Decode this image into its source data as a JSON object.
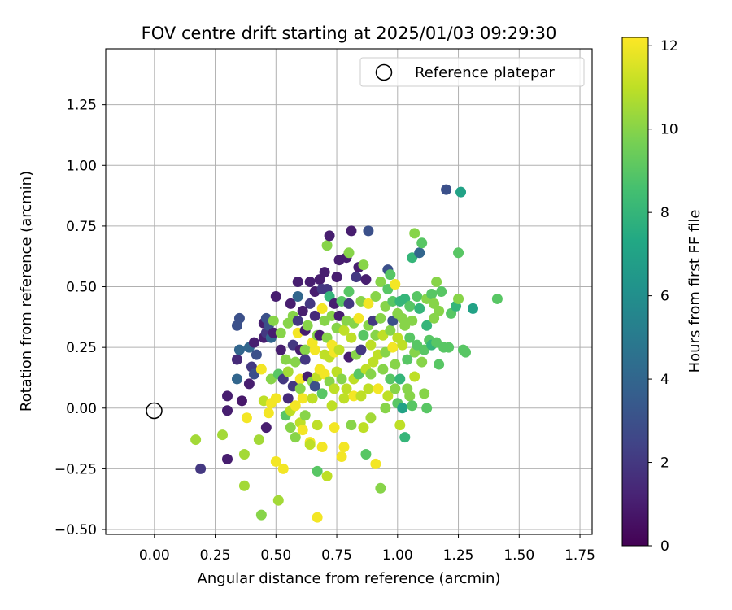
{
  "chart_data": {
    "type": "scatter",
    "title": "FOV centre drift starting at 2025/01/03 09:29:30",
    "xlabel": "Angular distance from reference (arcmin)",
    "ylabel": "Rotation from reference (arcmin)",
    "xlim": [
      -0.2,
      1.8
    ],
    "ylim": [
      -0.52,
      1.48
    ],
    "xticks": [
      "0.00",
      "0.25",
      "0.50",
      "0.75",
      "1.00",
      "1.25",
      "1.50",
      "1.75"
    ],
    "yticks": [
      "−0.50",
      "−0.25",
      "0.00",
      "0.25",
      "0.50",
      "0.75",
      "1.00",
      "1.25"
    ],
    "grid": true,
    "legend": {
      "location": "top-right",
      "entries": [
        {
          "label": "Reference platepar",
          "marker": "open-circle"
        }
      ]
    },
    "reference_point": {
      "x": 0.0,
      "y": 0.0
    },
    "colorbar": {
      "label": "Hours from first FF file",
      "colormap": "viridis",
      "range": [
        0,
        12.2
      ],
      "ticks": [
        "0",
        "2",
        "4",
        "6",
        "8",
        "10",
        "12"
      ]
    },
    "series": [
      {
        "color_by": "hours",
        "points": [
          [
            0.17,
            -0.13,
            10.5
          ],
          [
            0.19,
            -0.25,
            2
          ],
          [
            0.28,
            -0.11,
            10.5
          ],
          [
            0.3,
            -0.21,
            1
          ],
          [
            0.3,
            -0.01,
            1
          ],
          [
            0.3,
            0.05,
            1
          ],
          [
            0.34,
            0.12,
            4
          ],
          [
            0.34,
            0.2,
            1.5
          ],
          [
            0.34,
            0.34,
            3
          ],
          [
            0.35,
            0.37,
            3
          ],
          [
            0.35,
            0.24,
            4
          ],
          [
            0.36,
            0.03,
            0.8
          ],
          [
            0.37,
            -0.19,
            10.5
          ],
          [
            0.37,
            -0.32,
            10.5
          ],
          [
            0.38,
            -0.04,
            12
          ],
          [
            0.39,
            0.1,
            1
          ],
          [
            0.39,
            0.25,
            4
          ],
          [
            0.4,
            0.17,
            2
          ],
          [
            0.41,
            0.14,
            3
          ],
          [
            0.41,
            0.27,
            1
          ],
          [
            0.42,
            0.22,
            3
          ],
          [
            0.43,
            -0.13,
            10.5
          ],
          [
            0.44,
            -0.44,
            10
          ],
          [
            0.44,
            0.16,
            12
          ],
          [
            0.45,
            0.29,
            1
          ],
          [
            0.45,
            0.35,
            1
          ],
          [
            0.45,
            0.03,
            11
          ],
          [
            0.46,
            -0.08,
            1
          ],
          [
            0.46,
            0.31,
            2
          ],
          [
            0.46,
            0.37,
            3
          ],
          [
            0.47,
            0.34,
            3
          ],
          [
            0.47,
            -0.02,
            12
          ],
          [
            0.48,
            0.02,
            12
          ],
          [
            0.48,
            0.29,
            4
          ],
          [
            0.48,
            0.12,
            10
          ],
          [
            0.49,
            0.36,
            10
          ],
          [
            0.49,
            0.31,
            1
          ],
          [
            0.5,
            -0.22,
            12
          ],
          [
            0.5,
            0.46,
            1
          ],
          [
            0.5,
            0.04,
            12
          ],
          [
            0.51,
            0.14,
            9
          ],
          [
            0.51,
            -0.38,
            10.5
          ],
          [
            0.52,
            0.31,
            10
          ],
          [
            0.52,
            0.24,
            1
          ],
          [
            0.53,
            0.12,
            2
          ],
          [
            0.53,
            -0.25,
            12
          ],
          [
            0.54,
            -0.03,
            9
          ],
          [
            0.54,
            0.2,
            10
          ],
          [
            0.55,
            0.35,
            10
          ],
          [
            0.55,
            0.04,
            1.5
          ],
          [
            0.55,
            0.15,
            10.5
          ],
          [
            0.56,
            0.43,
            1
          ],
          [
            0.56,
            -0.01,
            11
          ],
          [
            0.56,
            -0.08,
            10
          ],
          [
            0.57,
            0.26,
            2
          ],
          [
            0.57,
            0.38,
            10
          ],
          [
            0.57,
            0.09,
            2
          ],
          [
            0.58,
            0.01,
            12
          ],
          [
            0.58,
            -0.12,
            10
          ],
          [
            0.58,
            0.19,
            10
          ],
          [
            0.59,
            0.31,
            12
          ],
          [
            0.59,
            0.36,
            2
          ],
          [
            0.59,
            0.52,
            1
          ],
          [
            0.59,
            0.46,
            4
          ],
          [
            0.6,
            -0.06,
            11
          ],
          [
            0.6,
            0.12,
            12
          ],
          [
            0.6,
            0.24,
            1
          ],
          [
            0.6,
            0.08,
            10
          ],
          [
            0.61,
            0.4,
            1
          ],
          [
            0.61,
            0.04,
            12
          ],
          [
            0.61,
            -0.09,
            12
          ],
          [
            0.62,
            0.24,
            10
          ],
          [
            0.62,
            0.32,
            1
          ],
          [
            0.62,
            -0.03,
            10
          ],
          [
            0.62,
            0.2,
            2
          ],
          [
            0.63,
            0.13,
            1
          ],
          [
            0.63,
            0.34,
            10
          ],
          [
            0.64,
            0.52,
            1
          ],
          [
            0.64,
            0.43,
            2
          ],
          [
            0.64,
            -0.14,
            12
          ],
          [
            0.64,
            -0.15,
            11
          ],
          [
            0.65,
            0.27,
            12
          ],
          [
            0.65,
            0.04,
            11
          ],
          [
            0.65,
            0.11,
            10
          ],
          [
            0.66,
            0.48,
            1
          ],
          [
            0.66,
            0.38,
            1.5
          ],
          [
            0.66,
            0.24,
            12
          ],
          [
            0.66,
            0.09,
            3
          ],
          [
            0.67,
            -0.45,
            12
          ],
          [
            0.67,
            -0.26,
            9
          ],
          [
            0.67,
            0.3,
            10
          ],
          [
            0.67,
            0.13,
            11
          ],
          [
            0.67,
            -0.07,
            11
          ],
          [
            0.68,
            0.53,
            1
          ],
          [
            0.68,
            0.3,
            1
          ],
          [
            0.68,
            0.16,
            12
          ],
          [
            0.69,
            0.41,
            12
          ],
          [
            0.69,
            0.49,
            2
          ],
          [
            0.69,
            0.06,
            9
          ],
          [
            0.69,
            -0.16,
            12
          ],
          [
            0.7,
            0.22,
            11
          ],
          [
            0.7,
            0.14,
            12
          ],
          [
            0.7,
            0.36,
            10
          ],
          [
            0.7,
            0.56,
            1
          ],
          [
            0.71,
            0.67,
            10
          ],
          [
            0.71,
            0.49,
            2
          ],
          [
            0.71,
            0.29,
            10
          ],
          [
            0.71,
            -0.28,
            11
          ],
          [
            0.72,
            0.71,
            1
          ],
          [
            0.72,
            0.46,
            8
          ],
          [
            0.72,
            0.11,
            10
          ],
          [
            0.72,
            0.21,
            11
          ],
          [
            0.73,
            0.26,
            12
          ],
          [
            0.73,
            0.38,
            10
          ],
          [
            0.73,
            0.01,
            11
          ],
          [
            0.74,
            0.43,
            1
          ],
          [
            0.74,
            0.23,
            12
          ],
          [
            0.74,
            -0.08,
            12
          ],
          [
            0.74,
            0.08,
            11
          ],
          [
            0.75,
            0.54,
            1
          ],
          [
            0.75,
            0.33,
            10
          ],
          [
            0.75,
            0.15,
            11
          ],
          [
            0.76,
            0.24,
            11
          ],
          [
            0.76,
            0.38,
            1
          ],
          [
            0.76,
            0.61,
            1
          ],
          [
            0.77,
            0.44,
            9
          ],
          [
            0.77,
            -0.2,
            12
          ],
          [
            0.77,
            0.12,
            10
          ],
          [
            0.78,
            0.32,
            11
          ],
          [
            0.78,
            0.04,
            11
          ],
          [
            0.78,
            -0.16,
            12
          ],
          [
            0.79,
            0.08,
            11
          ],
          [
            0.79,
            0.36,
            10
          ],
          [
            0.79,
            0.62,
            1
          ],
          [
            0.8,
            0.64,
            10
          ],
          [
            0.8,
            0.48,
            9
          ],
          [
            0.8,
            0.21,
            1
          ],
          [
            0.8,
            0.43,
            2
          ],
          [
            0.81,
            0.73,
            1
          ],
          [
            0.81,
            -0.07,
            10
          ],
          [
            0.81,
            0.29,
            11
          ],
          [
            0.82,
            0.35,
            10
          ],
          [
            0.82,
            0.12,
            11
          ],
          [
            0.82,
            0.05,
            12
          ],
          [
            0.83,
            0.54,
            2
          ],
          [
            0.83,
            0.22,
            10
          ],
          [
            0.84,
            0.58,
            1
          ],
          [
            0.84,
            0.37,
            12
          ],
          [
            0.84,
            0.14,
            9
          ],
          [
            0.85,
            0.05,
            11
          ],
          [
            0.85,
            0.44,
            10
          ],
          [
            0.85,
            0.24,
            2
          ],
          [
            0.86,
            -0.08,
            11
          ],
          [
            0.86,
            0.59,
            10
          ],
          [
            0.86,
            0.3,
            9
          ],
          [
            0.87,
            0.16,
            11
          ],
          [
            0.87,
            -0.19,
            9
          ],
          [
            0.87,
            0.53,
            1
          ],
          [
            0.88,
            0.43,
            12
          ],
          [
            0.88,
            0.73,
            3
          ],
          [
            0.88,
            0.34,
            10
          ],
          [
            0.88,
            0.08,
            11
          ],
          [
            0.89,
            -0.04,
            10.5
          ],
          [
            0.89,
            0.26,
            11
          ],
          [
            0.89,
            0.14,
            10
          ],
          [
            0.9,
            0.36,
            2
          ],
          [
            0.9,
            0.19,
            11
          ],
          [
            0.91,
            -0.23,
            12
          ],
          [
            0.91,
            0.46,
            10
          ],
          [
            0.91,
            0.3,
            10
          ],
          [
            0.92,
            0.08,
            12
          ],
          [
            0.92,
            0.22,
            11
          ],
          [
            0.93,
            -0.33,
            10
          ],
          [
            0.93,
            0.52,
            10
          ],
          [
            0.93,
            0.37,
            10
          ],
          [
            0.94,
            0.16,
            10
          ],
          [
            0.94,
            0.3,
            11
          ],
          [
            0.95,
            0.42,
            10
          ],
          [
            0.95,
            0.0,
            10
          ],
          [
            0.95,
            0.23,
            10
          ],
          [
            0.96,
            0.57,
            3
          ],
          [
            0.96,
            0.49,
            9
          ],
          [
            0.96,
            0.05,
            11
          ],
          [
            0.97,
            0.32,
            10
          ],
          [
            0.97,
            0.55,
            9
          ],
          [
            0.97,
            0.12,
            9
          ],
          [
            0.98,
            0.44,
            9
          ],
          [
            0.98,
            0.25,
            12
          ],
          [
            0.98,
            0.36,
            3
          ],
          [
            0.99,
            0.51,
            12
          ],
          [
            0.99,
            0.08,
            10
          ],
          [
            0.99,
            0.18,
            10
          ],
          [
            1.0,
            0.39,
            10
          ],
          [
            1.0,
            0.29,
            11
          ],
          [
            1.0,
            0.02,
            9
          ],
          [
            1.01,
            -0.07,
            11
          ],
          [
            1.01,
            0.44,
            8
          ],
          [
            1.01,
            0.12,
            8
          ],
          [
            1.02,
            0.37,
            10
          ],
          [
            1.02,
            0.26,
            11
          ],
          [
            1.02,
            0.0,
            7
          ],
          [
            1.03,
            -0.12,
            8
          ],
          [
            1.03,
            0.34,
            10
          ],
          [
            1.03,
            0.45,
            8
          ],
          [
            1.04,
            0.08,
            10
          ],
          [
            1.04,
            0.2,
            9
          ],
          [
            1.05,
            0.42,
            9
          ],
          [
            1.05,
            0.29,
            9
          ],
          [
            1.05,
            0.05,
            10
          ],
          [
            1.06,
            0.62,
            8
          ],
          [
            1.06,
            0.36,
            10
          ],
          [
            1.06,
            0.01,
            9
          ],
          [
            1.07,
            0.72,
            10
          ],
          [
            1.07,
            0.23,
            10
          ],
          [
            1.07,
            0.13,
            11
          ],
          [
            1.08,
            0.46,
            9
          ],
          [
            1.08,
            0.26,
            9
          ],
          [
            1.09,
            0.41,
            8
          ],
          [
            1.09,
            0.64,
            4
          ],
          [
            1.1,
            0.68,
            9
          ],
          [
            1.1,
            0.19,
            10
          ],
          [
            1.11,
            0.24,
            9
          ],
          [
            1.11,
            0.06,
            10
          ],
          [
            1.12,
            0.34,
            8
          ],
          [
            1.12,
            0.45,
            10
          ],
          [
            1.12,
            0.0,
            9
          ],
          [
            1.13,
            0.28,
            9
          ],
          [
            1.14,
            0.47,
            9
          ],
          [
            1.14,
            0.26,
            8
          ],
          [
            1.15,
            0.37,
            10
          ],
          [
            1.15,
            0.43,
            10
          ],
          [
            1.16,
            0.52,
            10
          ],
          [
            1.16,
            0.27,
            9
          ],
          [
            1.17,
            0.4,
            10
          ],
          [
            1.17,
            0.18,
            9
          ],
          [
            1.18,
            0.48,
            9
          ],
          [
            1.19,
            0.25,
            9
          ],
          [
            1.2,
            0.9,
            3
          ],
          [
            1.21,
            0.25,
            9
          ],
          [
            1.22,
            0.39,
            9
          ],
          [
            1.24,
            0.42,
            8
          ],
          [
            1.25,
            0.64,
            9
          ],
          [
            1.25,
            0.45,
            10
          ],
          [
            1.26,
            0.89,
            7
          ],
          [
            1.27,
            0.24,
            9
          ],
          [
            1.28,
            0.23,
            9
          ],
          [
            1.31,
            0.41,
            7
          ],
          [
            1.41,
            0.45,
            9
          ]
        ]
      }
    ]
  }
}
